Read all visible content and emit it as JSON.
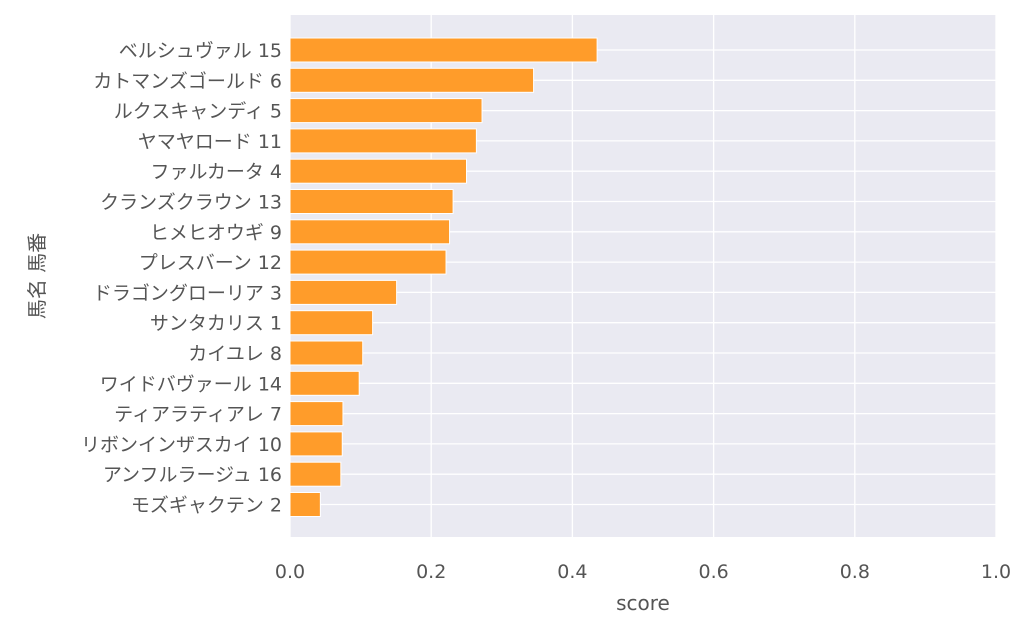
{
  "chart_data": {
    "type": "bar",
    "orientation": "horizontal",
    "categories": [
      "ベルシュヴァル 15",
      "カトマンズゴールド 6",
      "ルクスキャンディ 5",
      "ヤマヤロード 11",
      "ファルカータ 4",
      "クランズクラウン 13",
      "ヒメヒオウギ 9",
      "プレスバーン 12",
      "ドラゴングローリア 3",
      "サンタカリス 1",
      "カイユレ 8",
      "ワイドバヴァール 14",
      "ティアラティアレ 7",
      "リボンインザスカイ 10",
      "アンフルラージュ 16",
      "モズギャクテン 2"
    ],
    "values": [
      0.435,
      0.345,
      0.272,
      0.264,
      0.25,
      0.231,
      0.226,
      0.221,
      0.151,
      0.117,
      0.103,
      0.098,
      0.075,
      0.074,
      0.072,
      0.043
    ],
    "title": "",
    "xlabel": "score",
    "ylabel": "馬名 馬番",
    "xlim": [
      0.0,
      1.0
    ],
    "xticks": [
      "0.0",
      "0.2",
      "0.4",
      "0.6",
      "0.8",
      "1.0"
    ],
    "grid": true,
    "colors": {
      "bar": "#ff9c2a",
      "background": "#eaeaf2",
      "grid": "#ffffff"
    }
  }
}
